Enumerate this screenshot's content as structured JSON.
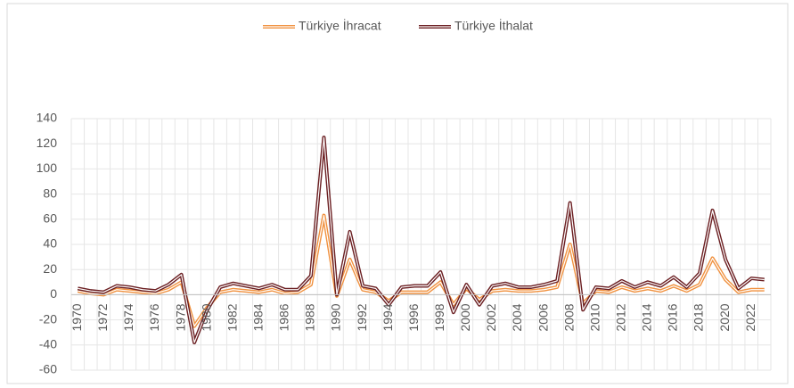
{
  "chart_data": {
    "type": "line",
    "categories": [
      "1970",
      null,
      "1972",
      null,
      "1974",
      null,
      "1976",
      null,
      "1978",
      null,
      "1980",
      null,
      "1982",
      null,
      "1984",
      null,
      "1986",
      null,
      "1988",
      null,
      "1990",
      null,
      "1992",
      null,
      "1994",
      null,
      "1996",
      null,
      "1998",
      null,
      "2000",
      null,
      "2002",
      null,
      "2004",
      null,
      "2006",
      null,
      "2008",
      null,
      "2010",
      null,
      "2012",
      null,
      "2014",
      null,
      "2016",
      null,
      "2018",
      null,
      "2020",
      null,
      "2022",
      null
    ],
    "series": [
      {
        "name": "Türkiye İhracat",
        "color": "#f0913f",
        "values": [
          3,
          1,
          0,
          4,
          3,
          2,
          1,
          4,
          10,
          -25,
          -10,
          2,
          4,
          3,
          2,
          4,
          1,
          2,
          8,
          63,
          -1,
          28,
          4,
          2,
          -5,
          2,
          2,
          2,
          10,
          -8,
          5,
          -4,
          3,
          4,
          3,
          3,
          4,
          6,
          40,
          -7,
          3,
          2,
          6,
          3,
          5,
          3,
          7,
          3,
          8,
          29,
          12,
          2,
          4,
          4
        ]
      },
      {
        "name": "Türkiye İthalat",
        "color": "#6b1f22",
        "values": [
          5,
          3,
          2,
          7,
          6,
          4,
          3,
          8,
          16,
          -38,
          -12,
          6,
          9,
          7,
          5,
          8,
          4,
          4,
          15,
          125,
          0,
          50,
          7,
          5,
          -8,
          6,
          7,
          7,
          18,
          -14,
          8,
          -8,
          7,
          9,
          6,
          6,
          8,
          11,
          73,
          -12,
          6,
          5,
          11,
          6,
          10,
          7,
          14,
          6,
          17,
          67,
          28,
          5,
          13,
          12
        ]
      }
    ],
    "ylim": [
      -60,
      140
    ],
    "yticks": [
      -60,
      -40,
      -20,
      0,
      20,
      40,
      60,
      80,
      100,
      120,
      140
    ],
    "grid": true,
    "legend": "top"
  }
}
